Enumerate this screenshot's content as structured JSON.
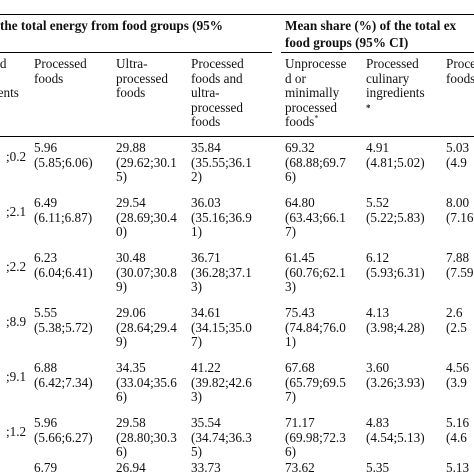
{
  "header": {
    "group_left": "the total energy from food groups (95%",
    "group_right_line1": "Mean share (%) of the total ex",
    "group_right_line2": "food groups (95% CI)",
    "footnote_mark": "*",
    "columns": [
      "ed\nr\nients",
      "Processed\nfoods",
      "Ultra-\nprocessed\nfoods",
      "Processed\nfoods    and\nultra-\nprocessed\nfoods",
      "Unprocesse\nd          or\nminimally\nprocessed\nfoods",
      "Processed\nculinary\ningredients",
      "Process\nfoods"
    ]
  },
  "rows": [
    {
      "c0": ";0.2",
      "c1": [
        "5.96",
        "(5.85;6.06)"
      ],
      "c2": [
        "29.88",
        "(29.62;30.1",
        "5)"
      ],
      "c3": [
        "35.84",
        "(35.55;36.1",
        "2)"
      ],
      "c4": [
        "69.32",
        "(68.88;69.7",
        "6)"
      ],
      "c5": [
        "4.91",
        "(4.81;5.02)"
      ],
      "c6": [
        "5.03",
        "(4.9"
      ]
    },
    {
      "c0": ";2.1",
      "c1": [
        "6.49",
        "(6.11;6.87)"
      ],
      "c2": [
        "29.54",
        "(28.69;30.4",
        "0)"
      ],
      "c3": [
        "36.03",
        "(35.16;36.9",
        "1)"
      ],
      "c4": [
        "64.80",
        "(63.43;66.1",
        "7)"
      ],
      "c5": [
        "5.52",
        "(5.22;5.83)"
      ],
      "c6": [
        "8.00",
        "(7.16"
      ]
    },
    {
      "c0": ";2.2",
      "c1": [
        "6.23",
        "(6.04;6.41)"
      ],
      "c2": [
        "30.48",
        "(30.07;30.8",
        "9)"
      ],
      "c3": [
        "36.71",
        "(36.28;37.1",
        "3)"
      ],
      "c4": [
        "61.45",
        "(60.76;62.1",
        "3)"
      ],
      "c5": [
        "6.12",
        "(5.93;6.31)"
      ],
      "c6": [
        "7.88",
        "(7.59"
      ]
    },
    {
      "c0": ";8.9",
      "c1": [
        "5.55",
        "(5.38;5.72)"
      ],
      "c2": [
        "29.06",
        "(28.64;29.4",
        "9)"
      ],
      "c3": [
        "34.61",
        "(34.15;35.0",
        "7)"
      ],
      "c4": [
        "75.43",
        "(74.84;76.0",
        "1)"
      ],
      "c5": [
        "4.13",
        "(3.98;4.28)"
      ],
      "c6": [
        "2.6",
        "(2.5"
      ]
    },
    {
      "c0": ";9.1",
      "c1": [
        "6.88",
        "(6.42;7.34)"
      ],
      "c2": [
        "34.35",
        "(33.04;35.6",
        "6)"
      ],
      "c3": [
        "41.22",
        "(39.82;42.6",
        "3)"
      ],
      "c4": [
        "67.68",
        "(65.79;69.5",
        "7)"
      ],
      "c5": [
        "3.60",
        "(3.26;3.93)"
      ],
      "c6": [
        "4.56",
        "(3.9"
      ]
    },
    {
      "c0": ";1.2",
      "c1": [
        "5.96",
        "(5.66;6.27)"
      ],
      "c2": [
        "29.58",
        "(28.80;30.3",
        "6)"
      ],
      "c3": [
        "35.54",
        "(34.74;36.3",
        "5)"
      ],
      "c4": [
        "71.17",
        "(69.98;72.3",
        "6)"
      ],
      "c5": [
        "4.83",
        "(4.54;5.13)"
      ],
      "c6": [
        "5.16",
        "(4.6"
      ]
    },
    {
      "c0": "",
      "c1": [
        "6.79"
      ],
      "c2": [
        "26.94"
      ],
      "c3": [
        "33.73"
      ],
      "c4": [
        "73.62"
      ],
      "c5": [
        "5.35"
      ],
      "c6": [
        "5.13"
      ]
    }
  ]
}
